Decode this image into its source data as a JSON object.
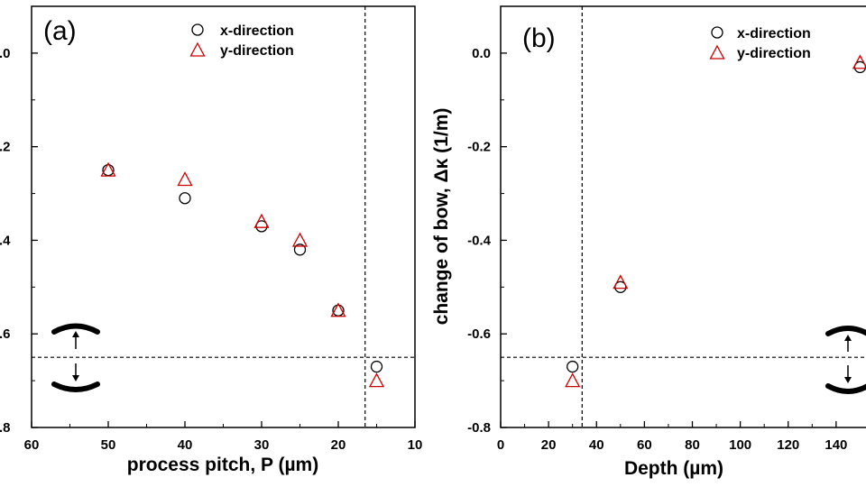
{
  "chart_data": [
    {
      "type": "scatter",
      "panel_label": "(a)",
      "xlabel": "process pitch, P (µm)",
      "ylabel": "",
      "xlim": [
        60,
        10
      ],
      "ylim": [
        -0.8,
        0.1
      ],
      "x_ticks": [
        60,
        50,
        40,
        30,
        20,
        10
      ],
      "x_tick_labels": [
        "60",
        "50",
        "40",
        "30",
        "20",
        "10"
      ],
      "y_ticks": [
        0.0,
        -0.2,
        -0.4,
        -0.6,
        -0.8
      ],
      "y_tick_labels": [
        ".0",
        ".2",
        ".4",
        ".6",
        ".8"
      ],
      "series": [
        {
          "name": "x-direction",
          "marker": "circle",
          "color": "#000000",
          "x": [
            50,
            40,
            30,
            25,
            20,
            15
          ],
          "y": [
            -0.25,
            -0.31,
            -0.37,
            -0.42,
            -0.55,
            -0.67
          ]
        },
        {
          "name": "y-direction",
          "marker": "triangle",
          "color": "#cc0000",
          "x": [
            50,
            40,
            30,
            25,
            20,
            15
          ],
          "y": [
            -0.25,
            -0.27,
            -0.36,
            -0.4,
            -0.55,
            -0.7
          ]
        }
      ],
      "reference_lines": {
        "x": 16.5,
        "y": -0.65
      },
      "legend": {
        "position": "top-right"
      },
      "grid": false
    },
    {
      "type": "scatter",
      "panel_label": "(b)",
      "xlabel": "Depth (µm)",
      "ylabel": "change of bow, Δκ (1/m)",
      "xlim": [
        0,
        160
      ],
      "ylim": [
        -0.8,
        0.1
      ],
      "x_ticks": [
        0,
        20,
        40,
        60,
        80,
        100,
        120,
        140
      ],
      "x_tick_labels": [
        "0",
        "20",
        "40",
        "60",
        "80",
        "100",
        "120",
        "140"
      ],
      "y_ticks": [
        0.0,
        -0.2,
        -0.4,
        -0.6,
        -0.8
      ],
      "y_tick_labels": [
        "0.0",
        "-0.2",
        "-0.4",
        "-0.6",
        "-0.8"
      ],
      "series": [
        {
          "name": "x-direction",
          "marker": "circle",
          "color": "#000000",
          "x": [
            30,
            50,
            150
          ],
          "y": [
            -0.67,
            -0.5,
            -0.03
          ]
        },
        {
          "name": "y-direction",
          "marker": "triangle",
          "color": "#cc0000",
          "x": [
            30,
            50,
            150
          ],
          "y": [
            -0.7,
            -0.49,
            -0.02
          ]
        }
      ],
      "reference_lines": {
        "x": 34,
        "y": -0.65
      },
      "legend": {
        "position": "top-right"
      },
      "grid": false
    }
  ]
}
